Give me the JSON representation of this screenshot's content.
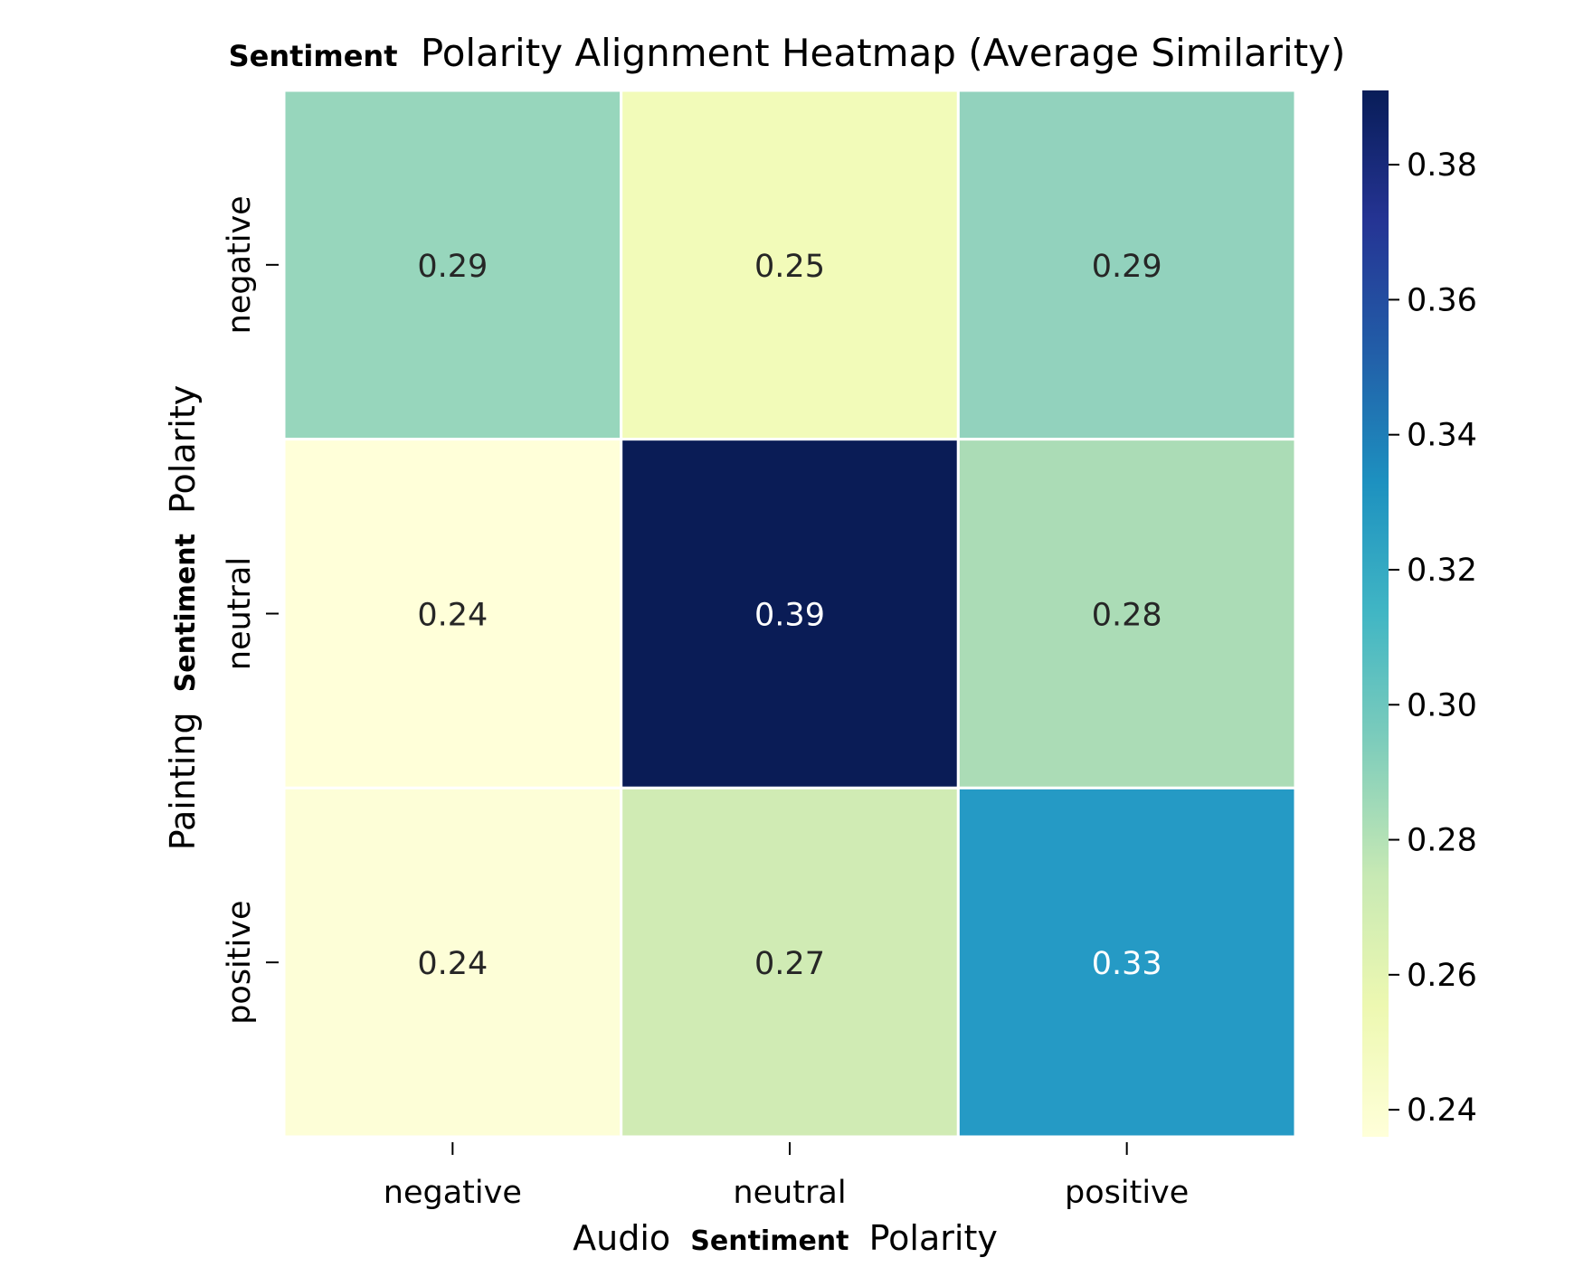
{
  "chart_data": {
    "type": "heatmap",
    "title_prefix": "Sentiment",
    "title_rest": "Polarity Alignment Heatmap (Average Similarity)",
    "xlabel_prefix": "Audio",
    "xlabel_bold": "Sentiment",
    "xlabel_suffix": "Polarity",
    "ylabel_prefix": "Painting",
    "ylabel_bold": "Sentiment",
    "ylabel_suffix": "Polarity",
    "x_categories": [
      "negative",
      "neutral",
      "positive"
    ],
    "y_categories": [
      "negative",
      "neutral",
      "positive"
    ],
    "values": [
      [
        0.29,
        0.25,
        0.29
      ],
      [
        0.24,
        0.39,
        0.28
      ],
      [
        0.24,
        0.27,
        0.33
      ]
    ],
    "cell_colors": [
      [
        "#97d6bc",
        "#f2fbb9",
        "#92d2bd"
      ],
      [
        "#ffffd9",
        "#0a1c56",
        "#abdcb6"
      ],
      [
        "#fdfed7",
        "#d0ebb4",
        "#259ac5"
      ]
    ],
    "annotation_colors": [
      [
        "#262626",
        "#262626",
        "#262626"
      ],
      [
        "#262626",
        "#ffffff",
        "#262626"
      ],
      [
        "#262626",
        "#262626",
        "#ffffff"
      ]
    ],
    "colormap": "YlGnBu",
    "colorbar": {
      "min": 0.236,
      "max": 0.391,
      "ticks": [
        "0.24",
        "0.26",
        "0.28",
        "0.30",
        "0.32",
        "0.34",
        "0.36",
        "0.38"
      ],
      "stops": [
        "#ffffd9",
        "#edf8b1",
        "#c7e9b4",
        "#7fcdbb",
        "#41b6c4",
        "#1d91c0",
        "#225ea8",
        "#253494",
        "#081d58"
      ]
    },
    "grid": false,
    "legend": "colorbar-right"
  }
}
